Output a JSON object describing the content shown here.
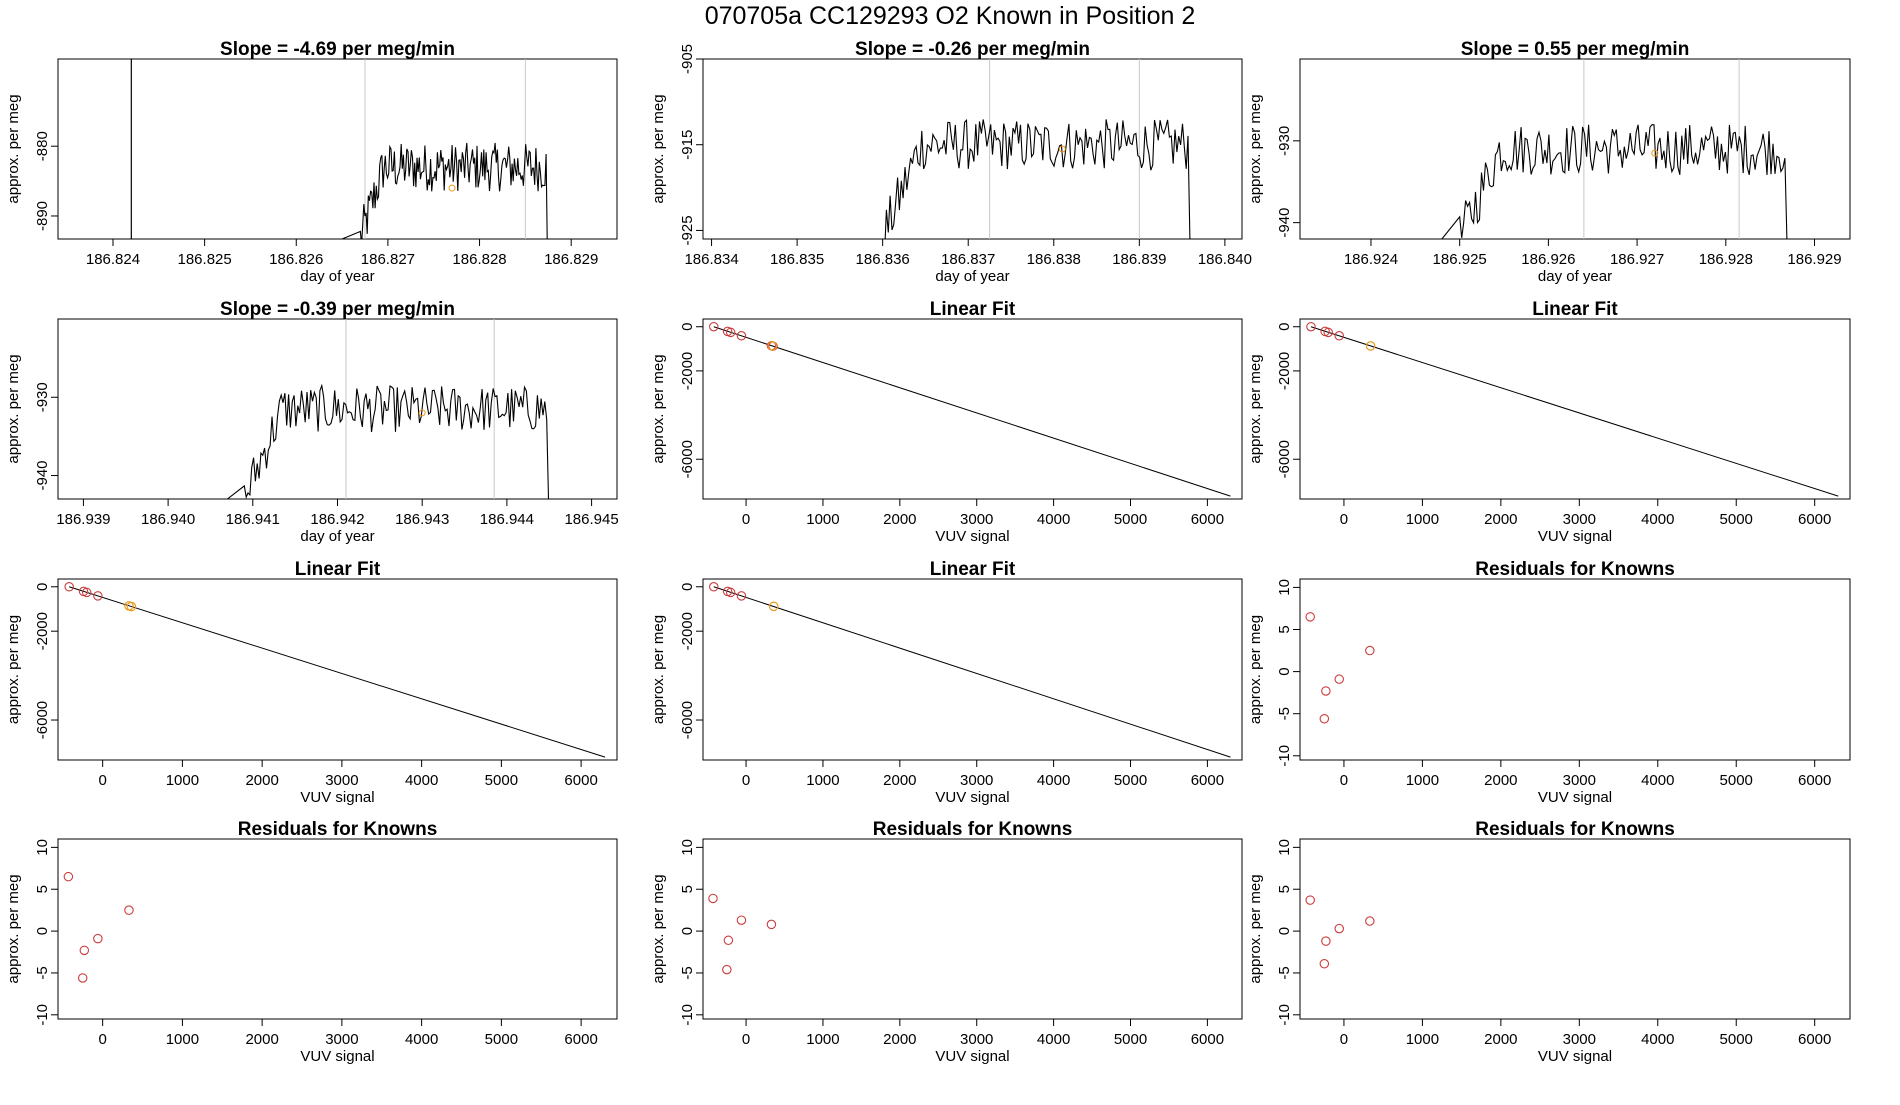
{
  "figure": {
    "title": "070705a      CC129293    O2 Known in Position  2",
    "colors": {
      "line": "#000000",
      "residual_marker": "#cd3c3c",
      "highlight_marker": "#e89a1c",
      "guide_line": "#c8c8c8"
    }
  },
  "chart_data": [
    {
      "type": "line",
      "panel": "row1-col1",
      "title": "Slope =  -4.69  per meg/min",
      "xlabel": "day of year",
      "ylabel": "approx. per meg",
      "xlim": [
        186.8234,
        186.8295
      ],
      "ylim": [
        -893.3,
        -867.5
      ],
      "xticks": [
        "186.824",
        "186.825",
        "186.826",
        "186.827",
        "186.828",
        "186.829"
      ],
      "yticks": [
        "-880",
        "-890"
      ],
      "trace": {
        "x_start": 186.8267,
        "x_end": 186.8288,
        "level_mean": -883,
        "noise": 3.5,
        "min_edge": -893.3,
        "pre_flat": -893.3,
        "post_drop": true
      },
      "spike_x": 186.8242,
      "guide_lines_x": [
        186.82675,
        186.8285
      ],
      "highlight_point": [
        186.8277,
        -886
      ]
    },
    {
      "type": "line",
      "panel": "row2-col1",
      "title": "Slope =  -0.26  per meg/min",
      "xlabel": "day of year",
      "ylabel": "approx. per meg",
      "xlim": [
        186.8339,
        186.8402
      ],
      "ylim": [
        -926,
        -905
      ],
      "xticks": [
        "186.834",
        "186.835",
        "186.836",
        "186.837",
        "186.838",
        "186.839",
        "186.840"
      ],
      "yticks": [
        "-905",
        "-915",
        "-925"
      ],
      "trace": {
        "x_start": 186.836,
        "x_end": 186.8397,
        "level_mean": -915,
        "noise": 3.0,
        "min_edge": -926,
        "pre_flat": -926,
        "post_drop": true
      },
      "guide_lines_x": [
        186.83725,
        186.839
      ],
      "highlight_point": [
        186.8381,
        -915.5
      ]
    },
    {
      "type": "line",
      "panel": "row3-col1",
      "title": "Slope =  0.55  per meg/min",
      "xlabel": "day of year",
      "ylabel": "approx. per meg",
      "xlim": [
        186.9232,
        186.9294
      ],
      "ylim": [
        -942,
        -920
      ],
      "xticks": [
        "186.924",
        "186.925",
        "186.926",
        "186.927",
        "186.928",
        "186.929"
      ],
      "yticks": [
        "-930",
        "-940"
      ],
      "trace": {
        "x_start": 186.925,
        "x_end": 186.9288,
        "level_mean": -931,
        "noise": 3.2,
        "min_edge": -942,
        "pre_flat": -942,
        "post_drop": true
      },
      "guide_lines_x": [
        186.9264,
        186.92815
      ],
      "highlight_point": [
        186.9272,
        -931.5
      ]
    },
    {
      "type": "line",
      "panel": "row4-col1",
      "title": "Slope =  -0.39  per meg/min",
      "xlabel": "day of year",
      "ylabel": "approx. per meg",
      "xlim": [
        186.9387,
        186.9453
      ],
      "ylim": [
        -943,
        -920
      ],
      "xticks": [
        "186.939",
        "186.940",
        "186.941",
        "186.942",
        "186.943",
        "186.944",
        "186.945"
      ],
      "yticks": [
        "-930",
        "-940"
      ],
      "trace": {
        "x_start": 186.9409,
        "x_end": 186.9446,
        "level_mean": -931.5,
        "noise": 3.0,
        "min_edge": -943,
        "pre_flat": -943,
        "post_drop": true
      },
      "guide_lines_x": [
        186.9421,
        186.94385
      ],
      "highlight_point": [
        186.943,
        -932
      ]
    },
    {
      "type": "scatter",
      "panel": "row1-col2",
      "title": "Linear Fit",
      "xlabel": "VUV signal",
      "ylabel": "approx. per meg",
      "xlim": [
        -560,
        6450
      ],
      "ylim": [
        -7800,
        350
      ],
      "xticks": [
        "0",
        "1000",
        "2000",
        "3000",
        "4000",
        "5000",
        "6000"
      ],
      "yticks": [
        "0",
        "-2000",
        "-6000"
      ],
      "fit_line": {
        "x": [
          -420,
          6300
        ],
        "y": [
          0,
          -7670
        ]
      },
      "points": [
        {
          "x": -420,
          "y": 0
        },
        {
          "x": -240,
          "y": -210
        },
        {
          "x": -200,
          "y": -255
        },
        {
          "x": -60,
          "y": -410
        },
        {
          "x": 330,
          "y": -860
        },
        {
          "x": 350,
          "y": -880
        }
      ],
      "highlight_points": [
        {
          "x": 340,
          "y": -870
        }
      ]
    },
    {
      "type": "scatter",
      "panel": "row2-col2",
      "title": "Linear Fit",
      "xlabel": "VUV signal",
      "ylabel": "approx. per meg",
      "xlim": [
        -560,
        6450
      ],
      "ylim": [
        -7800,
        350
      ],
      "xticks": [
        "0",
        "1000",
        "2000",
        "3000",
        "4000",
        "5000",
        "6000"
      ],
      "yticks": [
        "0",
        "-2000",
        "-6000"
      ],
      "fit_line": {
        "x": [
          -420,
          6300
        ],
        "y": [
          0,
          -7670
        ]
      },
      "points": [
        {
          "x": -420,
          "y": 0
        },
        {
          "x": -240,
          "y": -210
        },
        {
          "x": -200,
          "y": -255
        },
        {
          "x": -60,
          "y": -410
        }
      ],
      "highlight_points": [
        {
          "x": 340,
          "y": -870
        }
      ]
    },
    {
      "type": "scatter",
      "panel": "row3-col2",
      "title": "Linear Fit",
      "xlabel": "VUV signal",
      "ylabel": "approx. per meg",
      "xlim": [
        -560,
        6450
      ],
      "ylim": [
        -7800,
        350
      ],
      "xticks": [
        "0",
        "1000",
        "2000",
        "3000",
        "4000",
        "5000",
        "6000"
      ],
      "yticks": [
        "0",
        "-2000",
        "-6000"
      ],
      "fit_line": {
        "x": [
          -420,
          6300
        ],
        "y": [
          0,
          -7670
        ]
      },
      "points": [
        {
          "x": -420,
          "y": 0
        },
        {
          "x": -240,
          "y": -210
        },
        {
          "x": -200,
          "y": -255
        },
        {
          "x": -60,
          "y": -410
        }
      ],
      "highlight_points": [
        {
          "x": 330,
          "y": -860
        },
        {
          "x": 360,
          "y": -890
        }
      ]
    },
    {
      "type": "scatter",
      "panel": "row4-col2",
      "title": "Linear Fit",
      "xlabel": "VUV signal",
      "ylabel": "approx. per meg",
      "xlim": [
        -560,
        6450
      ],
      "ylim": [
        -7800,
        350
      ],
      "xticks": [
        "0",
        "1000",
        "2000",
        "3000",
        "4000",
        "5000",
        "6000"
      ],
      "yticks": [
        "0",
        "-2000",
        "-6000"
      ],
      "fit_line": {
        "x": [
          -420,
          6300
        ],
        "y": [
          0,
          -7670
        ]
      },
      "points": [
        {
          "x": -420,
          "y": 0
        },
        {
          "x": -240,
          "y": -210
        },
        {
          "x": -200,
          "y": -255
        },
        {
          "x": -60,
          "y": -410
        }
      ],
      "highlight_points": [
        {
          "x": 360,
          "y": -880
        }
      ]
    },
    {
      "type": "scatter",
      "panel": "row1-col3",
      "title": "Residuals for Knowns",
      "xlabel": "VUV signal",
      "ylabel": "approx. per meg",
      "xlim": [
        -560,
        6450
      ],
      "ylim": [
        -10.5,
        11
      ],
      "xticks": [
        "0",
        "1000",
        "2000",
        "3000",
        "4000",
        "5000",
        "6000"
      ],
      "yticks": [
        "10",
        "5",
        "0",
        "-5",
        "-10"
      ],
      "points": [
        {
          "x": -430,
          "y": 6.5
        },
        {
          "x": -230,
          "y": -2.3
        },
        {
          "x": -250,
          "y": -5.6
        },
        {
          "x": -60,
          "y": -0.9
        },
        {
          "x": 330,
          "y": 2.5
        }
      ]
    },
    {
      "type": "scatter",
      "panel": "row2-col3",
      "title": "Residuals for Knowns",
      "xlabel": "VUV signal",
      "ylabel": "approx. per meg",
      "xlim": [
        -560,
        6450
      ],
      "ylim": [
        -10.5,
        11
      ],
      "xticks": [
        "0",
        "1000",
        "2000",
        "3000",
        "4000",
        "5000",
        "6000"
      ],
      "yticks": [
        "10",
        "5",
        "0",
        "-5",
        "-10"
      ],
      "points": [
        {
          "x": -430,
          "y": 6.5
        },
        {
          "x": -230,
          "y": -2.3
        },
        {
          "x": -250,
          "y": -5.6
        },
        {
          "x": -60,
          "y": -0.9
        },
        {
          "x": 330,
          "y": 2.5
        }
      ]
    },
    {
      "type": "scatter",
      "panel": "row3-col3",
      "title": "Residuals for Knowns",
      "xlabel": "VUV signal",
      "ylabel": "approx. per meg",
      "xlim": [
        -560,
        6450
      ],
      "ylim": [
        -10.5,
        11
      ],
      "xticks": [
        "0",
        "1000",
        "2000",
        "3000",
        "4000",
        "5000",
        "6000"
      ],
      "yticks": [
        "10",
        "5",
        "0",
        "-5",
        "-10"
      ],
      "points": [
        {
          "x": -430,
          "y": 3.9
        },
        {
          "x": -230,
          "y": -1.1
        },
        {
          "x": -250,
          "y": -4.6
        },
        {
          "x": -60,
          "y": 1.3
        },
        {
          "x": 330,
          "y": 0.8
        }
      ]
    },
    {
      "type": "scatter",
      "panel": "row4-col3",
      "title": "Residuals for Knowns",
      "xlabel": "VUV signal",
      "ylabel": "approx. per meg",
      "xlim": [
        -560,
        6450
      ],
      "ylim": [
        -10.5,
        11
      ],
      "xticks": [
        "0",
        "1000",
        "2000",
        "3000",
        "4000",
        "5000",
        "6000"
      ],
      "yticks": [
        "10",
        "5",
        "0",
        "-5",
        "-10"
      ],
      "points": [
        {
          "x": -430,
          "y": 3.7
        },
        {
          "x": -230,
          "y": -1.2
        },
        {
          "x": -250,
          "y": -3.9
        },
        {
          "x": -60,
          "y": 0.3
        },
        {
          "x": 330,
          "y": 1.2
        }
      ]
    }
  ]
}
